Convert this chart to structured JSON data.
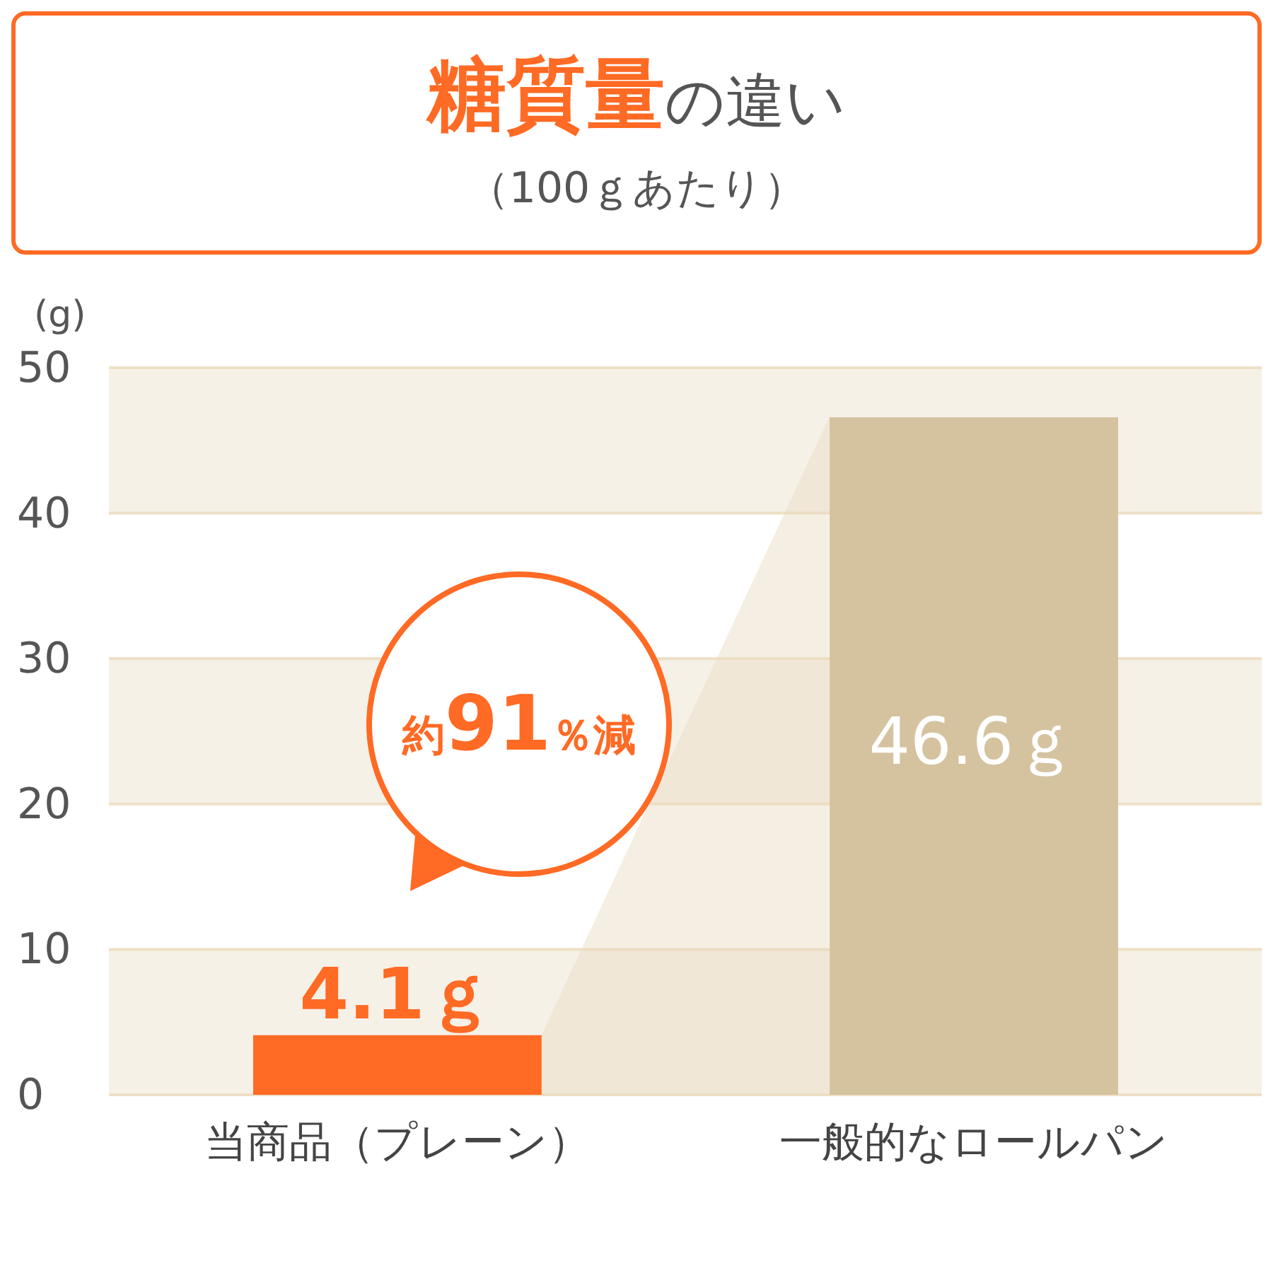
{
  "chart_data": {
    "type": "bar",
    "title": "糖質量の違い",
    "subtitle": "（100ｇあたり）",
    "ylabel": "(g)",
    "categories": [
      "当商品（プレーン）",
      "一般的なロールパン"
    ],
    "values": [
      4.1,
      46.6
    ],
    "colors": [
      "#ff6a24",
      "#d5c3a0"
    ],
    "value_labels": [
      "4.1ｇ",
      "46.6ｇ"
    ],
    "annotations": [
      "約91％減"
    ],
    "ylim": [
      0,
      50
    ],
    "yticks": [
      0,
      10,
      20,
      30,
      40,
      50
    ],
    "grid": "y"
  }
}
